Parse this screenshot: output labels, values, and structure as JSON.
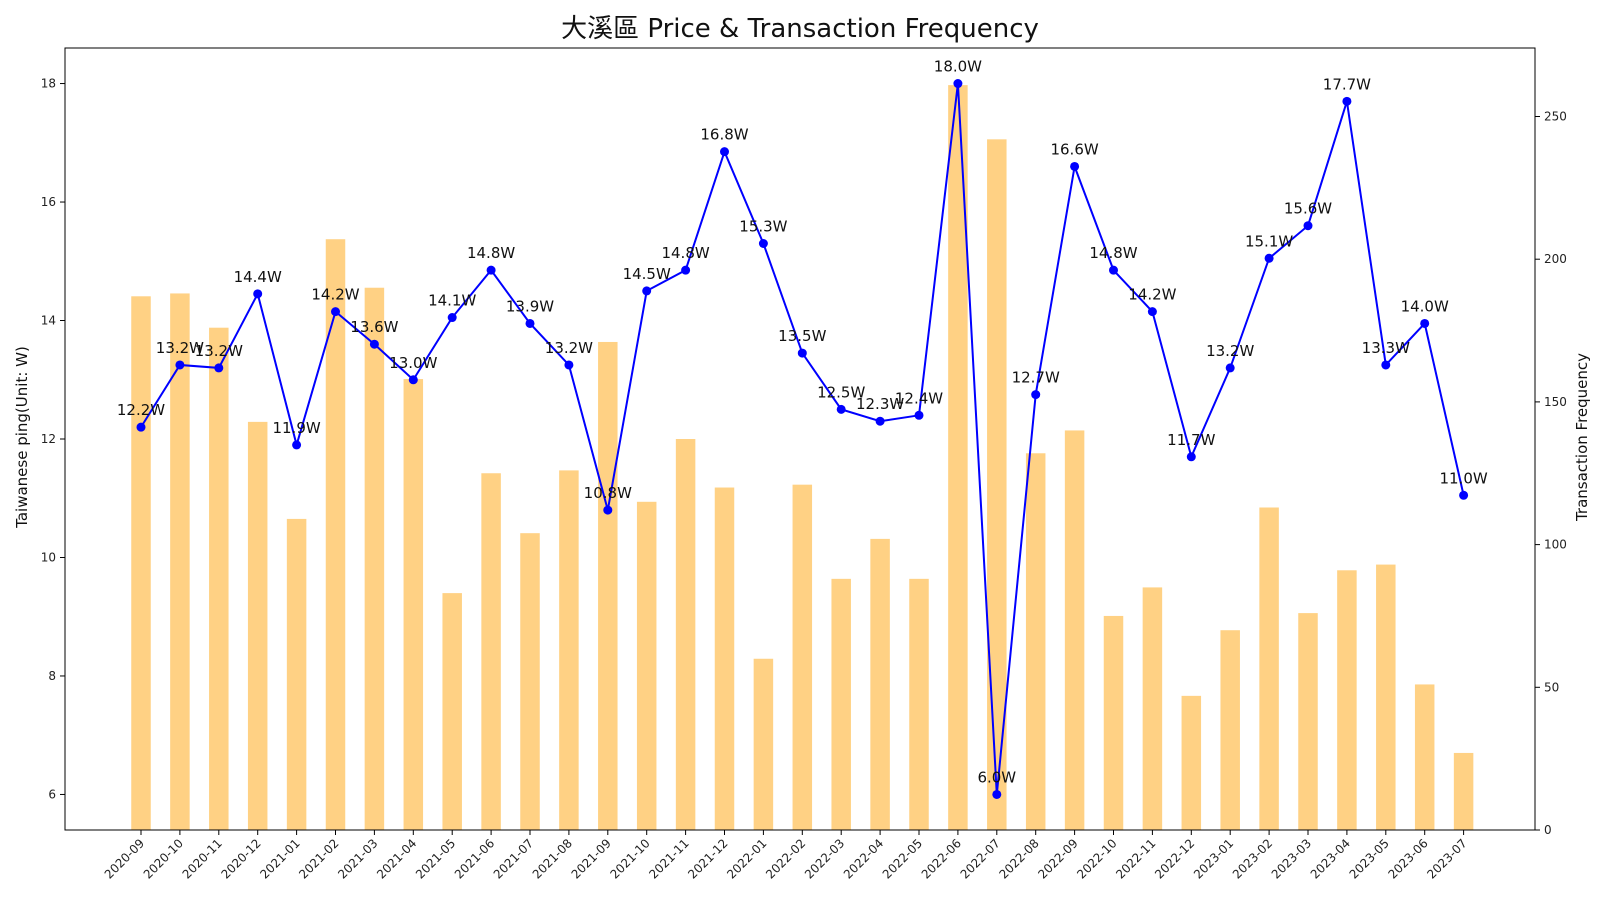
{
  "chart_data": {
    "type": "bar+line",
    "title": "大溪區 Price & Transaction Frequency",
    "ylabel_left": "Taiwanese ping(Unit: W)",
    "ylabel_right": "Transaction Frequency",
    "categories": [
      "2020-09",
      "2020-10",
      "2020-11",
      "2020-12",
      "2021-01",
      "2021-02",
      "2021-03",
      "2021-04",
      "2021-05",
      "2021-06",
      "2021-07",
      "2021-08",
      "2021-09",
      "2021-10",
      "2021-11",
      "2021-12",
      "2022-01",
      "2022-02",
      "2022-03",
      "2022-04",
      "2022-05",
      "2022-06",
      "2022-07",
      "2022-08",
      "2022-09",
      "2022-10",
      "2022-11",
      "2022-12",
      "2023-01",
      "2023-02",
      "2023-03",
      "2023-04",
      "2023-05",
      "2023-06",
      "2023-07"
    ],
    "series": [
      {
        "kind": "line",
        "axis": "left",
        "color": "#0000ff",
        "values": [
          12.2,
          13.25,
          13.2,
          14.45,
          11.9,
          14.15,
          13.6,
          13.0,
          14.05,
          14.85,
          13.95,
          13.25,
          10.8,
          14.5,
          14.85,
          16.85,
          15.3,
          13.45,
          12.5,
          12.3,
          12.4,
          18.0,
          6.0,
          12.75,
          16.6,
          14.85,
          14.15,
          11.7,
          13.2,
          15.05,
          15.6,
          17.7,
          13.25,
          13.95,
          11.05
        ],
        "labels": [
          "12.2W",
          "13.2W",
          "13.2W",
          "14.4W",
          "11.9W",
          "14.2W",
          "13.6W",
          "13.0W",
          "14.1W",
          "14.8W",
          "13.9W",
          "13.2W",
          "10.8W",
          "14.5W",
          "14.8W",
          "16.8W",
          "15.3W",
          "13.5W",
          "12.5W",
          "12.3W",
          "12.4W",
          "18.0W",
          "6.0W",
          "12.7W",
          "16.6W",
          "14.8W",
          "14.2W",
          "11.7W",
          "13.2W",
          "15.1W",
          "15.6W",
          "17.7W",
          "13.3W",
          "14.0W",
          "11.0W"
        ]
      },
      {
        "kind": "bar",
        "axis": "right",
        "color": "#ffcc77",
        "values": [
          187,
          188,
          176,
          143,
          109,
          207,
          190,
          158,
          83,
          125,
          104,
          126,
          171,
          115,
          137,
          120,
          60,
          121,
          88,
          102,
          88,
          261,
          242,
          132,
          140,
          75,
          85,
          47,
          70,
          113,
          76,
          91,
          93,
          51,
          27
        ]
      }
    ],
    "ylim_left": [
      5.4,
      18.6
    ],
    "ylim_right": [
      0,
      274
    ],
    "yticks_left": [
      "6",
      "8",
      "10",
      "12",
      "14",
      "16",
      "18"
    ],
    "yticks_right": [
      "0",
      "50",
      "100",
      "150",
      "200",
      "250"
    ],
    "grid": false
  }
}
